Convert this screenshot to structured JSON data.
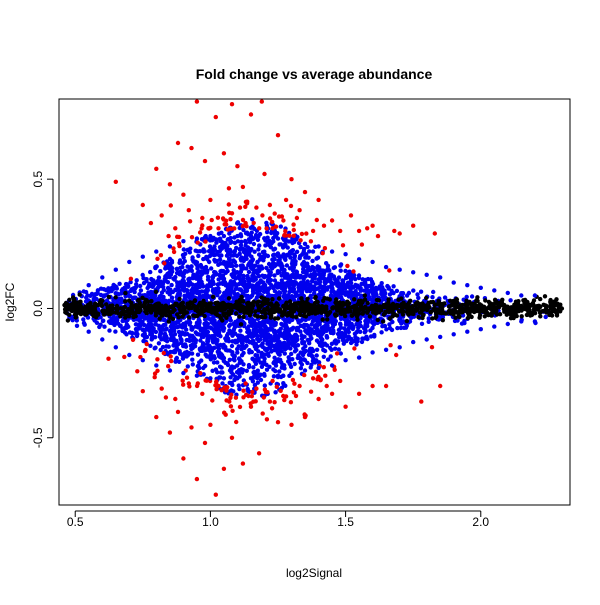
{
  "chart_data": {
    "type": "scatter",
    "title": "Fold change vs average abundance",
    "xlabel": "log2Signal",
    "ylabel": "log2FC",
    "xlim": [
      0.44,
      2.33
    ],
    "ylim": [
      -0.76,
      0.81
    ],
    "x_ticks": [
      0.5,
      1.0,
      1.5,
      2.0
    ],
    "x_tick_labels": [
      "0.5",
      "1.0",
      "1.5",
      "2.0"
    ],
    "y_ticks": [
      -0.5,
      0.0,
      0.5
    ],
    "y_tick_labels": [
      "-0.5",
      "0.0",
      "0.5"
    ],
    "grid": false,
    "legend": "none",
    "colors": {
      "black_points": "#000000",
      "blue_points": "#0000ee",
      "red_points": "#ee0000"
    },
    "series": [
      {
        "color_key": "blue_points",
        "description_points": "dense cloud of moderate fold changes",
        "x": [
          0.55,
          0.6,
          0.65,
          0.7,
          0.75,
          0.8,
          0.85,
          0.9,
          0.95,
          1.0,
          1.05,
          1.1,
          1.15,
          1.2,
          1.25,
          1.3,
          1.35,
          1.4,
          1.45,
          1.5,
          1.55,
          1.6,
          1.65,
          1.7,
          1.75,
          1.8,
          1.85,
          1.9,
          1.95,
          2.0,
          2.05,
          2.1,
          2.15,
          2.2,
          0.55,
          0.6,
          0.65,
          0.7,
          0.75,
          0.8,
          0.85,
          0.9,
          0.95,
          1.0,
          1.05,
          1.1,
          1.15,
          1.2,
          1.25,
          1.3,
          1.35,
          1.4,
          1.45,
          1.5,
          1.55,
          1.6,
          1.65,
          1.7,
          1.75,
          1.8,
          1.85,
          1.9,
          1.95,
          2.0,
          2.05,
          2.1,
          2.15,
          2.2
        ],
        "y": [
          0.09,
          0.12,
          0.15,
          0.18,
          0.2,
          0.22,
          0.24,
          0.26,
          0.27,
          0.28,
          0.28,
          0.28,
          0.28,
          0.27,
          0.27,
          0.26,
          0.25,
          0.24,
          0.22,
          0.21,
          0.19,
          0.18,
          0.16,
          0.15,
          0.14,
          0.13,
          0.12,
          0.1,
          0.09,
          0.08,
          0.07,
          0.06,
          0.05,
          0.05,
          -0.09,
          -0.12,
          -0.15,
          -0.18,
          -0.2,
          -0.22,
          -0.24,
          -0.25,
          -0.26,
          -0.27,
          -0.27,
          -0.27,
          -0.27,
          -0.26,
          -0.26,
          -0.25,
          -0.24,
          -0.23,
          -0.22,
          -0.2,
          -0.19,
          -0.17,
          -0.16,
          -0.15,
          -0.13,
          -0.12,
          -0.11,
          -0.1,
          -0.09,
          -0.08,
          -0.07,
          -0.06,
          -0.05,
          -0.05
        ]
      },
      {
        "color_key": "red_points",
        "x": [
          0.95,
          1.08,
          1.19,
          1.02,
          1.15,
          1.25,
          0.88,
          0.93,
          0.98,
          1.05,
          1.1,
          1.2,
          1.3,
          1.35,
          0.8,
          0.85,
          0.9,
          1.0,
          1.12,
          1.22,
          1.28,
          1.33,
          1.4,
          1.45,
          1.52,
          0.75,
          1.6,
          1.62,
          0.65,
          1.55,
          1.7,
          1.75,
          0.78,
          0.82,
          0.87,
          0.92,
          0.97,
          1.03,
          1.07,
          1.13,
          1.17,
          1.23,
          1.27,
          1.32,
          1.38,
          1.42,
          1.48,
          1.58,
          1.68,
          1.83,
          1.02,
          0.95,
          1.05,
          0.9,
          1.12,
          1.18,
          0.98,
          1.08,
          0.85,
          0.93,
          1.0,
          1.25,
          1.35,
          0.8,
          1.3,
          0.88,
          1.15,
          1.22,
          1.4,
          1.5,
          0.75,
          1.45,
          1.6,
          0.82,
          0.87,
          0.92,
          0.97,
          1.03,
          1.07,
          1.13,
          1.17,
          1.23,
          1.28,
          1.33,
          1.38,
          1.43,
          1.48,
          1.55,
          1.65,
          1.78,
          1.85
        ],
        "y": [
          0.8,
          0.79,
          0.8,
          0.74,
          0.75,
          0.67,
          0.64,
          0.62,
          0.57,
          0.6,
          0.55,
          0.52,
          0.5,
          0.45,
          0.54,
          0.48,
          0.44,
          0.42,
          0.47,
          0.4,
          0.42,
          0.38,
          0.42,
          0.34,
          0.36,
          0.4,
          0.32,
          0.28,
          0.49,
          0.3,
          0.29,
          0.32,
          0.33,
          0.36,
          0.31,
          0.38,
          0.35,
          0.31,
          0.37,
          0.33,
          0.39,
          0.31,
          0.34,
          0.35,
          0.3,
          0.32,
          0.3,
          0.31,
          0.3,
          0.29,
          -0.72,
          -0.66,
          -0.62,
          -0.58,
          -0.6,
          -0.56,
          -0.52,
          -0.5,
          -0.48,
          -0.46,
          -0.45,
          -0.44,
          -0.42,
          -0.42,
          -0.45,
          -0.4,
          -0.38,
          -0.36,
          -0.35,
          -0.38,
          -0.32,
          -0.33,
          -0.3,
          -0.31,
          -0.35,
          -0.29,
          -0.33,
          -0.3,
          -0.36,
          -0.29,
          -0.31,
          -0.28,
          -0.34,
          -0.3,
          -0.27,
          -0.3,
          -0.28,
          -0.33,
          -0.3,
          -0.36,
          -0.3
        ]
      },
      {
        "color_key": "black_points",
        "description_points": "band of near-zero fold changes",
        "x": [
          0.47,
          0.5,
          0.55,
          0.6,
          0.65,
          0.7,
          0.75,
          0.8,
          0.9,
          1.0,
          1.1,
          1.2,
          1.3,
          1.4,
          1.5,
          1.6,
          1.7,
          1.8,
          1.9,
          2.0,
          2.05,
          2.1,
          2.15,
          2.2,
          2.25,
          2.3
        ],
        "y": [
          0.0,
          0.02,
          -0.01,
          0.03,
          0.0,
          -0.02,
          0.01,
          0.0,
          -0.01,
          0.01,
          0.0,
          -0.01,
          0.0,
          0.01,
          -0.01,
          0.0,
          0.01,
          0.0,
          -0.01,
          0.0,
          0.0,
          -0.01,
          0.01,
          0.0,
          -0.01,
          0.0
        ]
      }
    ]
  }
}
